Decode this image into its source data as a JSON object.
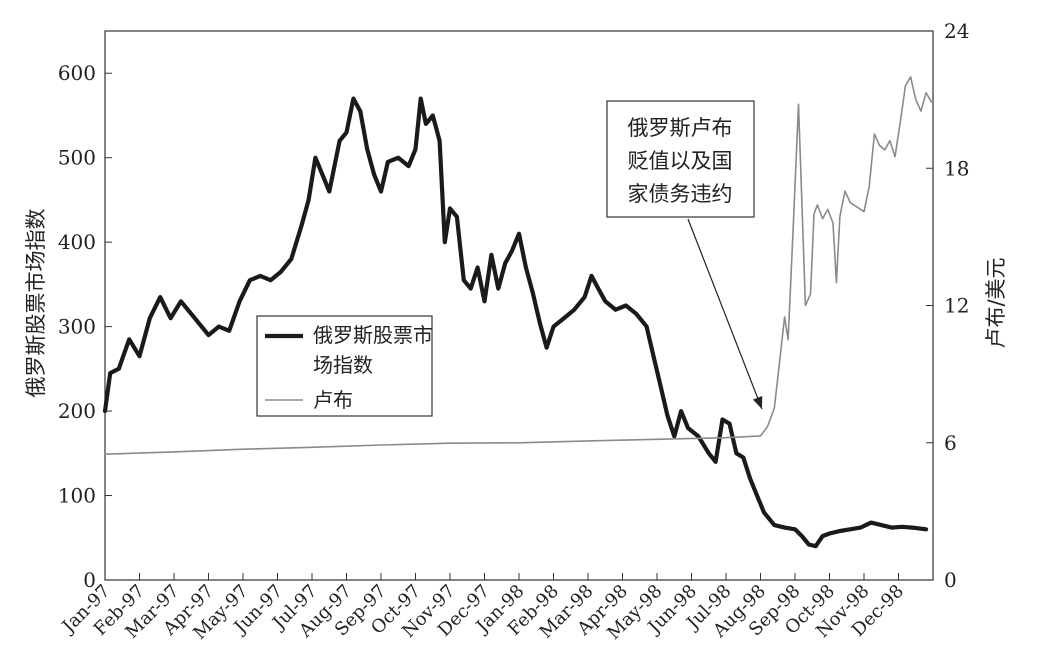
{
  "chart_data": {
    "type": "line",
    "ylabel_left": "俄罗斯股票市场指数",
    "ylabel_right": "卢布/美元",
    "ylim_left": [
      0,
      650
    ],
    "ylim_right": [
      0,
      24
    ],
    "yticks_left": [
      "0",
      "100",
      "200",
      "300",
      "400",
      "500",
      "600"
    ],
    "yticks_right": [
      "0",
      "6",
      "12",
      "18",
      "24"
    ],
    "categories": [
      "Jan-97",
      "Feb-97",
      "Mar-97",
      "Apr-97",
      "May-97",
      "Jun-97",
      "Jul-97",
      "Aug-97",
      "Sep-97",
      "Oct-97",
      "Nov-97",
      "Dec-97",
      "Jan-98",
      "Feb-98",
      "Mar-98",
      "Apr-98",
      "May-98",
      "Jun-98",
      "Jul-98",
      "Aug-98",
      "Sep-98",
      "Oct-98",
      "Nov-98",
      "Dec-98"
    ],
    "grid": false,
    "legend_placement": "center-left",
    "annotation": {
      "lines": [
        "俄罗斯卢布",
        "贬值以及国",
        "家债务违约"
      ],
      "points_to": {
        "x": 19.1,
        "y_right": 7.3
      }
    },
    "series": [
      {
        "name": "俄罗斯股票市场指数",
        "axis": "left",
        "color": "#1a1a1a",
        "points": [
          [
            0,
            200
          ],
          [
            0.15,
            245
          ],
          [
            0.4,
            250
          ],
          [
            0.7,
            285
          ],
          [
            1.0,
            265
          ],
          [
            1.3,
            310
          ],
          [
            1.6,
            335
          ],
          [
            1.9,
            310
          ],
          [
            2.2,
            330
          ],
          [
            2.5,
            315
          ],
          [
            2.8,
            300
          ],
          [
            3.0,
            290
          ],
          [
            3.3,
            300
          ],
          [
            3.6,
            295
          ],
          [
            3.9,
            330
          ],
          [
            4.2,
            355
          ],
          [
            4.5,
            360
          ],
          [
            4.8,
            355
          ],
          [
            5.1,
            365
          ],
          [
            5.4,
            380
          ],
          [
            5.7,
            420
          ],
          [
            5.9,
            450
          ],
          [
            6.1,
            500
          ],
          [
            6.3,
            480
          ],
          [
            6.5,
            460
          ],
          [
            6.8,
            520
          ],
          [
            7.0,
            530
          ],
          [
            7.2,
            570
          ],
          [
            7.4,
            555
          ],
          [
            7.6,
            510
          ],
          [
            7.8,
            480
          ],
          [
            8.0,
            460
          ],
          [
            8.2,
            495
          ],
          [
            8.5,
            500
          ],
          [
            8.8,
            490
          ],
          [
            9.0,
            510
          ],
          [
            9.15,
            570
          ],
          [
            9.3,
            540
          ],
          [
            9.5,
            550
          ],
          [
            9.7,
            520
          ],
          [
            9.85,
            400
          ],
          [
            10.0,
            440
          ],
          [
            10.2,
            430
          ],
          [
            10.4,
            355
          ],
          [
            10.6,
            345
          ],
          [
            10.8,
            370
          ],
          [
            11.0,
            330
          ],
          [
            11.2,
            385
          ],
          [
            11.4,
            345
          ],
          [
            11.6,
            375
          ],
          [
            11.8,
            390
          ],
          [
            12.0,
            410
          ],
          [
            12.2,
            370
          ],
          [
            12.4,
            340
          ],
          [
            12.6,
            305
          ],
          [
            12.8,
            275
          ],
          [
            13.0,
            300
          ],
          [
            13.3,
            310
          ],
          [
            13.6,
            320
          ],
          [
            13.9,
            335
          ],
          [
            14.1,
            360
          ],
          [
            14.3,
            345
          ],
          [
            14.5,
            330
          ],
          [
            14.8,
            320
          ],
          [
            15.1,
            325
          ],
          [
            15.4,
            315
          ],
          [
            15.7,
            300
          ],
          [
            15.9,
            265
          ],
          [
            16.1,
            230
          ],
          [
            16.3,
            195
          ],
          [
            16.5,
            170
          ],
          [
            16.7,
            200
          ],
          [
            16.9,
            180
          ],
          [
            17.2,
            170
          ],
          [
            17.5,
            150
          ],
          [
            17.7,
            140
          ],
          [
            17.9,
            190
          ],
          [
            18.1,
            185
          ],
          [
            18.3,
            150
          ],
          [
            18.5,
            145
          ],
          [
            18.7,
            120
          ],
          [
            18.9,
            100
          ],
          [
            19.1,
            80
          ],
          [
            19.4,
            65
          ],
          [
            19.7,
            62
          ],
          [
            20.0,
            60
          ],
          [
            20.2,
            52
          ],
          [
            20.4,
            42
          ],
          [
            20.6,
            40
          ],
          [
            20.8,
            52
          ],
          [
            21.0,
            55
          ],
          [
            21.3,
            58
          ],
          [
            21.6,
            60
          ],
          [
            21.9,
            62
          ],
          [
            22.2,
            68
          ],
          [
            22.5,
            65
          ],
          [
            22.8,
            62
          ],
          [
            23.1,
            63
          ],
          [
            23.4,
            62
          ],
          [
            23.8,
            60
          ]
        ]
      },
      {
        "name": "卢布",
        "axis": "right",
        "color": "#8a8a8a",
        "points": [
          [
            0,
            5.5
          ],
          [
            2,
            5.6
          ],
          [
            4,
            5.72
          ],
          [
            6,
            5.8
          ],
          [
            8,
            5.9
          ],
          [
            10,
            5.98
          ],
          [
            12,
            6.0
          ],
          [
            14,
            6.08
          ],
          [
            16,
            6.15
          ],
          [
            18,
            6.22
          ],
          [
            19.0,
            6.3
          ],
          [
            19.2,
            6.7
          ],
          [
            19.4,
            7.5
          ],
          [
            19.55,
            9.5
          ],
          [
            19.7,
            11.5
          ],
          [
            19.8,
            10.5
          ],
          [
            19.95,
            15.5
          ],
          [
            20.1,
            20.8
          ],
          [
            20.2,
            16.5
          ],
          [
            20.3,
            12.0
          ],
          [
            20.45,
            12.5
          ],
          [
            20.55,
            16.0
          ],
          [
            20.65,
            16.4
          ],
          [
            20.8,
            15.8
          ],
          [
            20.95,
            16.2
          ],
          [
            21.1,
            15.6
          ],
          [
            21.2,
            13.0
          ],
          [
            21.3,
            15.9
          ],
          [
            21.45,
            17.0
          ],
          [
            21.6,
            16.5
          ],
          [
            21.8,
            16.3
          ],
          [
            22.0,
            16.1
          ],
          [
            22.15,
            17.2
          ],
          [
            22.3,
            19.5
          ],
          [
            22.45,
            19.0
          ],
          [
            22.6,
            18.8
          ],
          [
            22.75,
            19.2
          ],
          [
            22.9,
            18.5
          ],
          [
            23.05,
            20.0
          ],
          [
            23.2,
            21.6
          ],
          [
            23.35,
            22.0
          ],
          [
            23.5,
            21.0
          ],
          [
            23.65,
            20.5
          ],
          [
            23.8,
            21.3
          ],
          [
            23.95,
            20.9
          ]
        ]
      }
    ]
  }
}
